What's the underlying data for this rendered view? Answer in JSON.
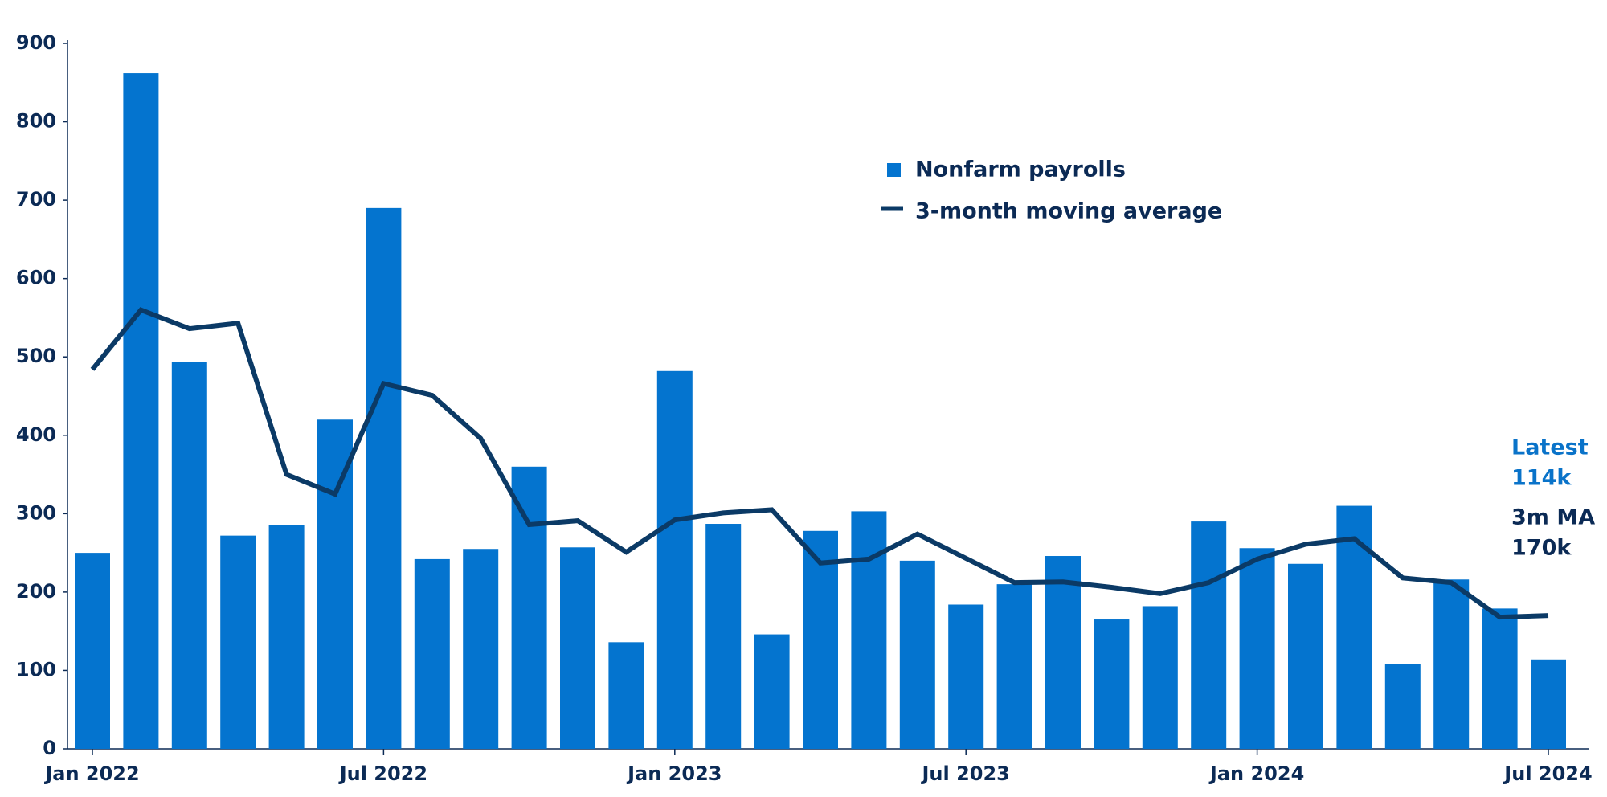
{
  "chart_data": {
    "type": "bar",
    "categories": [
      "Jan 2022",
      null,
      null,
      null,
      null,
      null,
      "Jul 2022",
      null,
      null,
      null,
      null,
      null,
      "Jan 2023",
      null,
      null,
      null,
      null,
      null,
      "Jul 2023",
      null,
      null,
      null,
      null,
      null,
      "Jan 2024",
      null,
      null,
      null,
      null,
      null,
      "Jul 2024"
    ],
    "series": [
      {
        "name": "Nonfarm payrolls",
        "color": "#0474cf",
        "type": "bar",
        "values": [
          250,
          862,
          494,
          272,
          285,
          420,
          690,
          242,
          255,
          360,
          257,
          136,
          482,
          287,
          146,
          278,
          303,
          240,
          184,
          210,
          246,
          165,
          182,
          290,
          256,
          236,
          310,
          108,
          216,
          179,
          114
        ]
      },
      {
        "name": "3-month moving average",
        "color": "#0b3a66",
        "type": "line",
        "values": [
          484,
          560,
          536,
          543,
          350,
          325,
          466,
          451,
          396,
          286,
          291,
          251,
          292,
          301,
          305,
          237,
          242,
          274,
          243,
          212,
          213,
          206,
          198,
          212,
          242,
          261,
          268,
          218,
          212,
          168,
          170
        ]
      }
    ],
    "ylim": [
      0,
      900
    ],
    "yticks": [
      0,
      100,
      200,
      300,
      400,
      500,
      600,
      700,
      800,
      900
    ],
    "annotations": [
      {
        "text": "Latest",
        "color": "#0a73c9"
      },
      {
        "text": "114k",
        "color": "#0a73c9"
      },
      {
        "text": "3m MA",
        "color": "#0b2a55"
      },
      {
        "text": "170k",
        "color": "#0b2a55"
      }
    ]
  }
}
